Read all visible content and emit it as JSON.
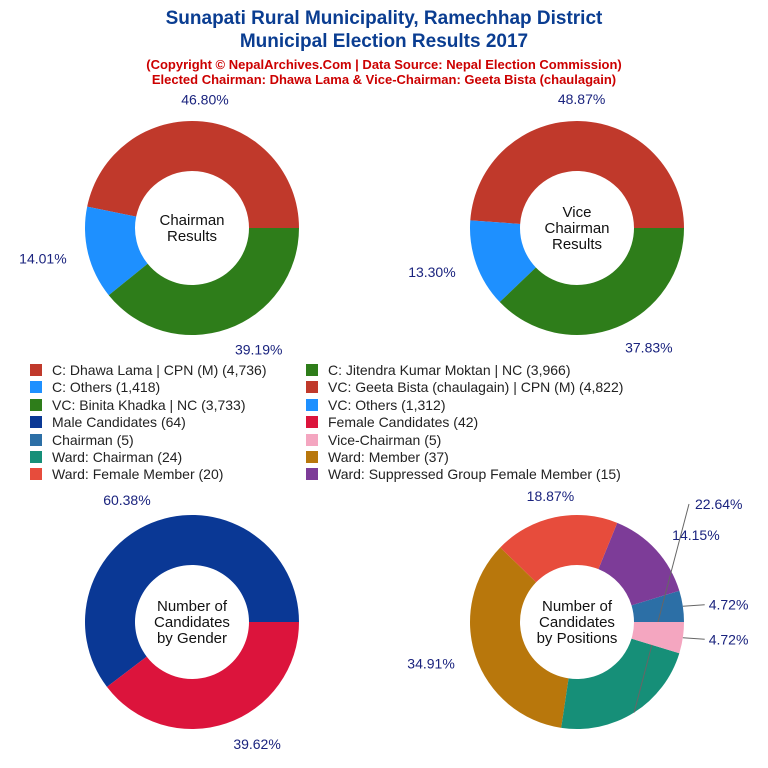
{
  "header": {
    "title1": "Sunapati Rural Municipality, Ramechhap District",
    "title2": "Municipal Election Results 2017",
    "sub1": "(Copyright © NepalArchives.Com | Data Source: Nepal Election Commission)",
    "sub2": "Elected Chairman: Dhawa Lama & Vice-Chairman: Geeta Bista (chaulagain)"
  },
  "legend": [
    {
      "label": "C: Dhawa Lama | CPN (M) (4,736)",
      "color": "#c0392b"
    },
    {
      "label": "C: Jitendra Kumar Moktan | NC (3,966)",
      "color": "#2e7d1a"
    },
    {
      "label": "C: Others (1,418)",
      "color": "#1e90ff"
    },
    {
      "label": "VC: Geeta Bista (chaulagain) | CPN (M) (4,822)",
      "color": "#c0392b"
    },
    {
      "label": "VC: Binita Khadka | NC (3,733)",
      "color": "#2e7d1a"
    },
    {
      "label": "VC: Others (1,312)",
      "color": "#1e90ff"
    },
    {
      "label": "Male Candidates (64)",
      "color": "#0a3895"
    },
    {
      "label": "Female Candidates (42)",
      "color": "#dc143c"
    },
    {
      "label": "Chairman (5)",
      "color": "#2c6fa6"
    },
    {
      "label": "Vice-Chairman (5)",
      "color": "#f4a6c0"
    },
    {
      "label": "Ward: Chairman (24)",
      "color": "#168f78"
    },
    {
      "label": "Ward: Member (37)",
      "color": "#b8770c"
    },
    {
      "label": "Ward: Female Member (20)",
      "color": "#e74c3c"
    },
    {
      "label": "Ward: Suppressed Group Female Member (15)",
      "color": "#7d3c98"
    }
  ],
  "chart_data": [
    {
      "type": "pie",
      "center_label": [
        "Chairman",
        "Results"
      ],
      "slices": [
        {
          "name": "C: Dhawa Lama | CPN (M)",
          "value": 4736,
          "pct_label": "46.80%",
          "color": "#c0392b"
        },
        {
          "name": "C: Others",
          "value": 1418,
          "pct_label": "14.01%",
          "color": "#1e90ff"
        },
        {
          "name": "C: Jitendra Kumar Moktan | NC",
          "value": 3966,
          "pct_label": "39.19%",
          "color": "#2e7d1a"
        }
      ]
    },
    {
      "type": "pie",
      "center_label": [
        "Vice",
        "Chairman",
        "Results"
      ],
      "slices": [
        {
          "name": "VC: Geeta Bista (chaulagain) | CPN (M)",
          "value": 4822,
          "pct_label": "48.87%",
          "color": "#c0392b"
        },
        {
          "name": "VC: Others",
          "value": 1312,
          "pct_label": "13.30%",
          "color": "#1e90ff"
        },
        {
          "name": "VC: Binita Khadka | NC",
          "value": 3733,
          "pct_label": "37.83%",
          "color": "#2e7d1a"
        }
      ]
    },
    {
      "type": "pie",
      "center_label": [
        "Number of",
        "Candidates",
        "by Gender"
      ],
      "slices": [
        {
          "name": "Male Candidates",
          "value": 64,
          "pct_label": "60.38%",
          "color": "#0a3895"
        },
        {
          "name": "Female Candidates",
          "value": 42,
          "pct_label": "39.62%",
          "color": "#dc143c"
        }
      ]
    },
    {
      "type": "pie",
      "center_label": [
        "Number of",
        "Candidates",
        "by Positions"
      ],
      "slices": [
        {
          "name": "Chairman",
          "value": 5,
          "pct_label": "4.72%",
          "color": "#2c6fa6"
        },
        {
          "name": "Ward: Suppressed Group Female Member",
          "value": 15,
          "pct_label": "14.15%",
          "color": "#7d3c98"
        },
        {
          "name": "Ward: Female Member",
          "value": 20,
          "pct_label": "18.87%",
          "color": "#e74c3c"
        },
        {
          "name": "Ward: Member",
          "value": 37,
          "pct_label": "34.91%",
          "color": "#b8770c"
        },
        {
          "name": "Ward: Chairman",
          "value": 24,
          "pct_label": "22.64%",
          "color": "#168f78"
        },
        {
          "name": "Vice-Chairman",
          "value": 5,
          "pct_label": "4.72%",
          "color": "#f4a6c0"
        }
      ]
    }
  ]
}
